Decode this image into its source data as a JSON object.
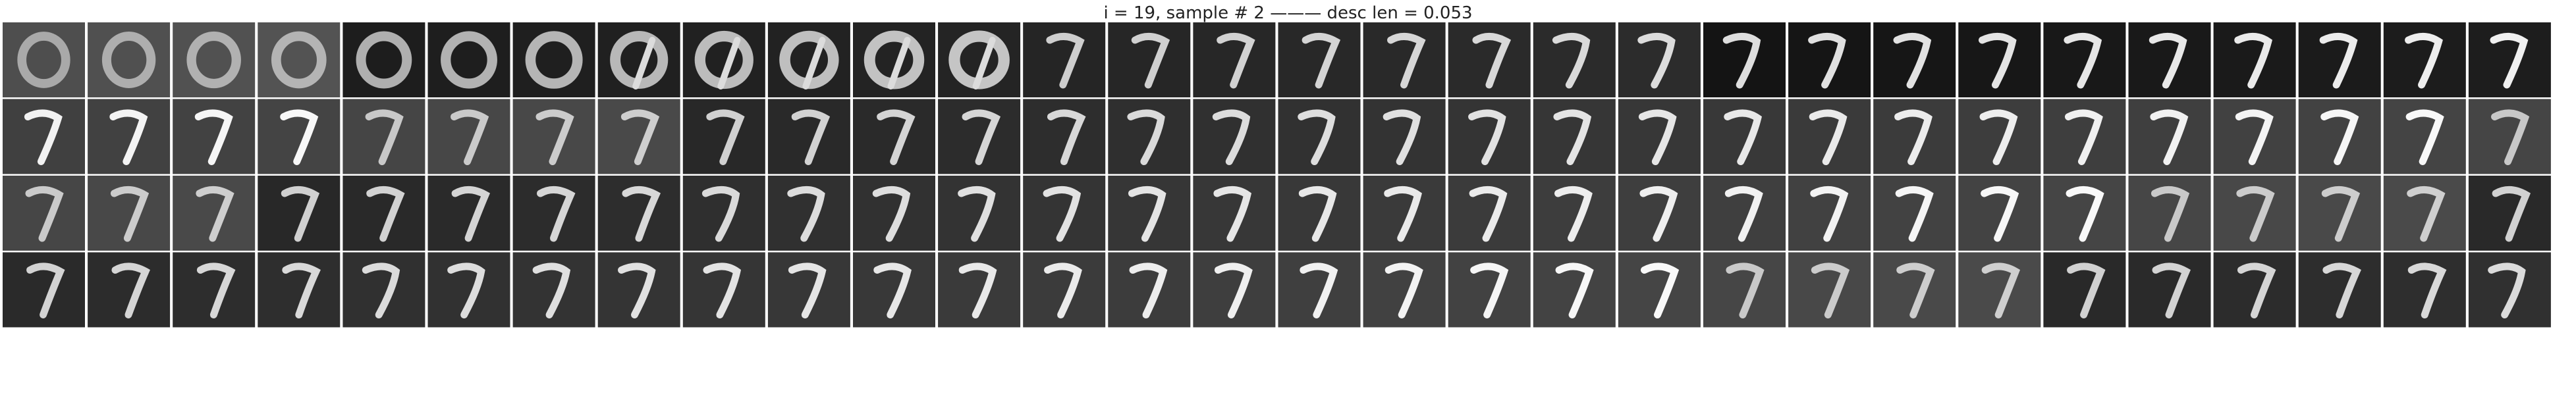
{
  "title": "i = 19, sample # 2 ——— desc len = 0.053",
  "grid": {
    "rows": 4,
    "cols": 30
  },
  "glyph": "7",
  "palette": [
    "#000000",
    "#ffffff"
  ]
}
